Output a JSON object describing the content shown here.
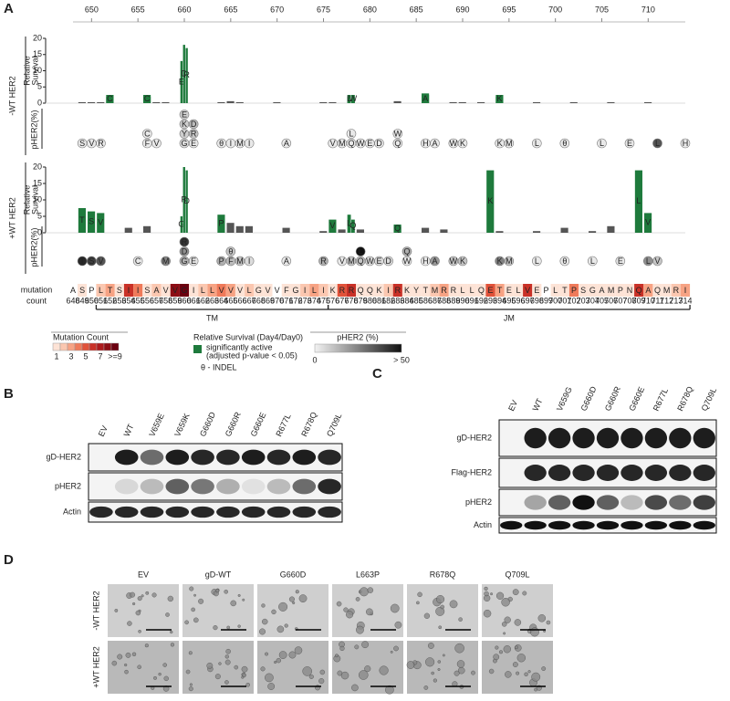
{
  "panel_a": {
    "label": "A",
    "xlim": [
      648,
      714
    ],
    "xticks": [
      650,
      655,
      660,
      665,
      670,
      675,
      680,
      685,
      690,
      695,
      700,
      705,
      710
    ],
    "significant_color": "#1e7a3c",
    "other_color": "#555555",
    "without_wt": {
      "title": "-WT HER2",
      "survival_axis": [
        "Relative",
        "Survival"
      ],
      "ylim": [
        0,
        20
      ],
      "yticks": [
        0,
        5,
        10,
        15,
        20
      ],
      "phos_axis": "pHER2(%)",
      "bars": [
        {
          "residue": 649,
          "value": 0.3
        },
        {
          "residue": 650,
          "value": 0.3
        },
        {
          "residue": 651,
          "value": 0.3
        },
        {
          "residue": 652,
          "value": 2,
          "label": "C",
          "significant": true
        },
        {
          "residue": 656,
          "value": 2,
          "label": "C",
          "significant": true
        },
        {
          "residue": 657,
          "value": 0.3
        },
        {
          "residue": 658,
          "value": 0.3
        },
        {
          "residue": 660,
          "value": 13,
          "label": "E",
          "significant": true
        },
        {
          "residue": 660,
          "value": 18,
          "label": "D",
          "significant": true
        },
        {
          "residue": 660,
          "value": 17,
          "label": "R",
          "significant": true
        },
        {
          "residue": 664,
          "value": 0.3
        },
        {
          "residue": 665,
          "value": 0.6
        },
        {
          "residue": 666,
          "value": 0.3
        },
        {
          "residue": 670,
          "value": 0.3
        },
        {
          "residue": 675,
          "value": 0.3
        },
        {
          "residue": 676,
          "value": 0.3
        },
        {
          "residue": 678,
          "value": 2,
          "label": "L",
          "significant": true
        },
        {
          "residue": 678,
          "value": 2,
          "label": "W",
          "significant": true
        },
        {
          "residue": 683,
          "value": 0.6
        },
        {
          "residue": 686,
          "value": 3,
          "label": "A",
          "significant": true
        },
        {
          "residue": 689,
          "value": 0.3
        },
        {
          "residue": 690,
          "value": 0.3
        },
        {
          "residue": 692,
          "value": 0.3
        },
        {
          "residue": 694,
          "value": 2,
          "label": "K",
          "significant": true
        },
        {
          "residue": 698,
          "value": 0.3
        },
        {
          "residue": 702,
          "value": 0.3
        },
        {
          "residue": 706,
          "value": 0.3
        },
        {
          "residue": 710,
          "value": 0.3
        }
      ],
      "phos": [
        {
          "residue": 649,
          "label": "S",
          "value": 2
        },
        {
          "residue": 650,
          "label": "V",
          "value": 2
        },
        {
          "residue": 651,
          "label": "R",
          "value": 2
        },
        {
          "residue": 656,
          "label": "F",
          "value": 2
        },
        {
          "residue": 656,
          "label": "C",
          "value": 2
        },
        {
          "residue": 657,
          "label": "V",
          "value": 2
        },
        {
          "residue": 660,
          "label": "G",
          "value": 5
        },
        {
          "residue": 660,
          "label": "Y",
          "value": 8
        },
        {
          "residue": 660,
          "label": "K",
          "value": 8
        },
        {
          "residue": 660,
          "label": "E",
          "value": 8
        },
        {
          "residue": 661,
          "label": "E",
          "value": 2
        },
        {
          "residue": 661,
          "label": "R",
          "value": 10
        },
        {
          "residue": 661,
          "label": "D",
          "value": 12
        },
        {
          "residue": 664,
          "label": "θ",
          "value": 2
        },
        {
          "residue": 665,
          "label": "I",
          "value": 2
        },
        {
          "residue": 666,
          "label": "M",
          "value": 2
        },
        {
          "residue": 667,
          "label": "I",
          "value": 2
        },
        {
          "residue": 671,
          "label": "A",
          "value": 2
        },
        {
          "residue": 676,
          "label": "V",
          "value": 2
        },
        {
          "residue": 677,
          "label": "M",
          "value": 2
        },
        {
          "residue": 678,
          "label": "Q",
          "value": 2
        },
        {
          "residue": 678,
          "label": "L",
          "value": 2
        },
        {
          "residue": 679,
          "label": "W",
          "value": 2
        },
        {
          "residue": 680,
          "label": "E",
          "value": 2
        },
        {
          "residue": 681,
          "label": "D",
          "value": 2
        },
        {
          "residue": 683,
          "label": "Q",
          "value": 2
        },
        {
          "residue": 683,
          "label": "W",
          "value": 2
        },
        {
          "residue": 686,
          "label": "H",
          "value": 2
        },
        {
          "residue": 687,
          "label": "A",
          "value": 2
        },
        {
          "residue": 689,
          "label": "W",
          "value": 2
        },
        {
          "residue": 690,
          "label": "K",
          "value": 2
        },
        {
          "residue": 694,
          "label": "K",
          "value": 2
        },
        {
          "residue": 695,
          "label": "M",
          "value": 2
        },
        {
          "residue": 698,
          "label": "L",
          "value": 2
        },
        {
          "residue": 701,
          "label": "θ",
          "value": 2
        },
        {
          "residue": 705,
          "label": "L",
          "value": 2
        },
        {
          "residue": 708,
          "label": "E",
          "value": 2
        },
        {
          "residue": 711,
          "label": "L",
          "value": 35
        },
        {
          "residue": 714,
          "label": "H",
          "value": 2
        }
      ]
    },
    "with_wt": {
      "title": "+WT HER2",
      "survival_axis": [
        "Relative",
        "Survival"
      ],
      "ylim": [
        0,
        20
      ],
      "yticks": [
        0,
        5,
        10,
        15,
        20
      ],
      "phos_axis": "pHER2(%)",
      "bars": [
        {
          "residue": 649,
          "value": 7.5,
          "label": "T",
          "significant": true
        },
        {
          "residue": 650,
          "value": 6.5,
          "label": "S",
          "significant": true
        },
        {
          "residue": 651,
          "value": 6,
          "label": "V",
          "significant": true
        },
        {
          "residue": 654,
          "value": 1.5
        },
        {
          "residue": 656,
          "value": 2
        },
        {
          "residue": 660,
          "value": 5,
          "label": "G",
          "significant": true
        },
        {
          "residue": 660,
          "value": 20,
          "label": "R",
          "significant": true
        },
        {
          "residue": 660,
          "value": 19,
          "label": "D",
          "significant": true
        },
        {
          "residue": 664,
          "value": 5.5,
          "label": "P",
          "significant": true
        },
        {
          "residue": 665,
          "value": 3
        },
        {
          "residue": 666,
          "value": 2
        },
        {
          "residue": 667,
          "value": 2
        },
        {
          "residue": 671,
          "value": 1.5
        },
        {
          "residue": 675,
          "value": 0.5
        },
        {
          "residue": 676,
          "value": 4,
          "label": "V",
          "significant": true
        },
        {
          "residue": 677,
          "value": 1
        },
        {
          "residue": 678,
          "value": 5.5,
          "label": "L",
          "significant": true
        },
        {
          "residue": 678,
          "value": 4,
          "label": "Q",
          "significant": true
        },
        {
          "residue": 679,
          "value": 1
        },
        {
          "residue": 683,
          "value": 2,
          "label": "Q",
          "significant": true
        },
        {
          "residue": 686,
          "value": 1.5
        },
        {
          "residue": 688,
          "value": 1
        },
        {
          "residue": 693,
          "value": 19,
          "label": "K",
          "significant": true
        },
        {
          "residue": 694,
          "value": 0.5
        },
        {
          "residue": 698,
          "value": 0.5
        },
        {
          "residue": 701,
          "value": 1.5
        },
        {
          "residue": 704,
          "value": 0.5
        },
        {
          "residue": 706,
          "value": 2
        },
        {
          "residue": 709,
          "value": 19,
          "label": "L",
          "significant": true
        },
        {
          "residue": 710,
          "value": 6,
          "label": "V",
          "significant": true
        }
      ],
      "phos": [
        {
          "residue": 649,
          "label": "T",
          "value": 45
        },
        {
          "residue": 650,
          "label": "S",
          "value": 40
        },
        {
          "residue": 651,
          "label": "V",
          "value": 35
        },
        {
          "residue": 655,
          "label": "C",
          "value": 2
        },
        {
          "residue": 658,
          "label": "M",
          "value": 25
        },
        {
          "residue": 660,
          "label": "G",
          "value": 15
        },
        {
          "residue": 660,
          "label": "D",
          "value": 22
        },
        {
          "residue": 660,
          "label": "R",
          "value": 42
        },
        {
          "residue": 661,
          "label": "E",
          "value": 3
        },
        {
          "residue": 664,
          "label": "P",
          "value": 15
        },
        {
          "residue": 665,
          "label": "F",
          "value": 12
        },
        {
          "residue": 665,
          "label": "θ",
          "value": 10
        },
        {
          "residue": 666,
          "label": "M",
          "value": 10
        },
        {
          "residue": 667,
          "label": "I",
          "value": 5
        },
        {
          "residue": 671,
          "label": "A",
          "value": 2
        },
        {
          "residue": 675,
          "label": "R",
          "value": 15
        },
        {
          "residue": 677,
          "label": "V",
          "value": 2
        },
        {
          "residue": 678,
          "label": "M",
          "value": 10
        },
        {
          "residue": 679,
          "label": "Q",
          "value": 10
        },
        {
          "residue": 679,
          "label": "L",
          "value": 50
        },
        {
          "residue": 680,
          "label": "W",
          "value": 5
        },
        {
          "residue": 681,
          "label": "E",
          "value": 5
        },
        {
          "residue": 682,
          "label": "D",
          "value": 5
        },
        {
          "residue": 684,
          "label": "W",
          "value": 2
        },
        {
          "residue": 684,
          "label": "Q",
          "value": 15
        },
        {
          "residue": 686,
          "label": "H",
          "value": 2
        },
        {
          "residue": 687,
          "label": "A",
          "value": 20
        },
        {
          "residue": 689,
          "label": "W",
          "value": 10
        },
        {
          "residue": 690,
          "label": "K",
          "value": 10
        },
        {
          "residue": 694,
          "label": "K",
          "value": 25
        },
        {
          "residue": 695,
          "label": "M",
          "value": 10
        },
        {
          "residue": 698,
          "label": "L",
          "value": 2
        },
        {
          "residue": 701,
          "label": "θ",
          "value": 2
        },
        {
          "residue": 704,
          "label": "L",
          "value": 2
        },
        {
          "residue": 707,
          "label": "E",
          "value": 2
        },
        {
          "residue": 710,
          "label": "L",
          "value": 22
        },
        {
          "residue": 711,
          "label": "V",
          "value": 10
        }
      ]
    },
    "sequence": {
      "label": "mutation",
      "count_label": "count",
      "letters": "ASPLTSIISAVVGILLVVVLGVVFGILIKRRQQKIRKYTMRRLLQETELVEPLTPSGAMPNQAQMRI",
      "numbers": [
        648,
        649,
        650,
        651,
        652,
        653,
        654,
        655,
        656,
        657,
        658,
        659,
        660,
        661,
        662,
        663,
        664,
        665,
        666,
        667,
        668,
        669,
        670,
        671,
        672,
        673,
        674,
        675,
        676,
        677,
        678,
        679,
        680,
        681,
        682,
        683,
        684,
        685,
        686,
        687,
        688,
        689,
        690,
        691,
        692,
        693,
        694,
        695,
        696,
        697,
        698,
        699,
        700,
        701,
        702,
        703,
        704,
        705,
        706,
        707,
        708,
        709,
        710,
        711,
        712,
        713,
        714
      ],
      "counts": [
        0,
        1,
        0,
        2,
        3,
        1,
        6,
        4,
        1,
        2,
        1,
        8,
        9,
        1,
        2,
        3,
        4,
        3,
        1,
        2,
        1,
        1,
        0,
        1,
        1,
        2,
        3,
        2,
        1,
        5,
        6,
        1,
        1,
        1,
        2,
        6,
        1,
        1,
        1,
        2,
        3,
        1,
        1,
        1,
        1,
        5,
        3,
        1,
        1,
        6,
        1,
        0,
        1,
        1,
        4,
        1,
        1,
        1,
        1,
        1,
        1,
        6,
        3,
        1,
        1,
        2,
        3
      ],
      "domains": [
        {
          "name": "TM",
          "from": 651,
          "to": 675
        },
        {
          "name": "JM",
          "from": 676,
          "to": 714
        }
      ]
    }
  },
  "legend": {
    "mutation_count": {
      "title": "Mutation Count",
      "ticks": [
        1,
        3,
        5,
        7,
        {
          "value": 9,
          "label": ">=9"
        }
      ]
    },
    "survival": {
      "title": "Relative Survival (Day4/Day0)",
      "significant": [
        "significantly active",
        "(adjusted p-value < 0.05)"
      ],
      "indel": "θ - INDEL"
    },
    "phos": {
      "title": "pHER2 (%)",
      "ticks": [
        0,
        {
          "value": 50,
          "label": "> 50"
        }
      ]
    }
  },
  "panel_b": {
    "label": "B",
    "lanes": [
      "EV",
      "WT",
      "V659E",
      "V659K",
      "G660D",
      "G660R",
      "G660E",
      "R677L",
      "R678Q",
      "Q709L"
    ],
    "rows": [
      "gD-HER2",
      "pHER2",
      "Actin"
    ]
  },
  "panel_c": {
    "label": "C",
    "lanes": [
      "EV",
      "WT",
      "V659G",
      "G660D",
      "G660R",
      "G660E",
      "R677L",
      "R678Q",
      "Q709L"
    ],
    "rows": [
      "gD-HER2",
      "Flag-HER2",
      "pHER2",
      "Actin"
    ]
  },
  "panel_d": {
    "label": "D",
    "columns": [
      "EV",
      "gD-WT",
      "G660D",
      "L663P",
      "R678Q",
      "Q709L"
    ],
    "rows": [
      "-WT HER2",
      "+WT HER2"
    ]
  }
}
